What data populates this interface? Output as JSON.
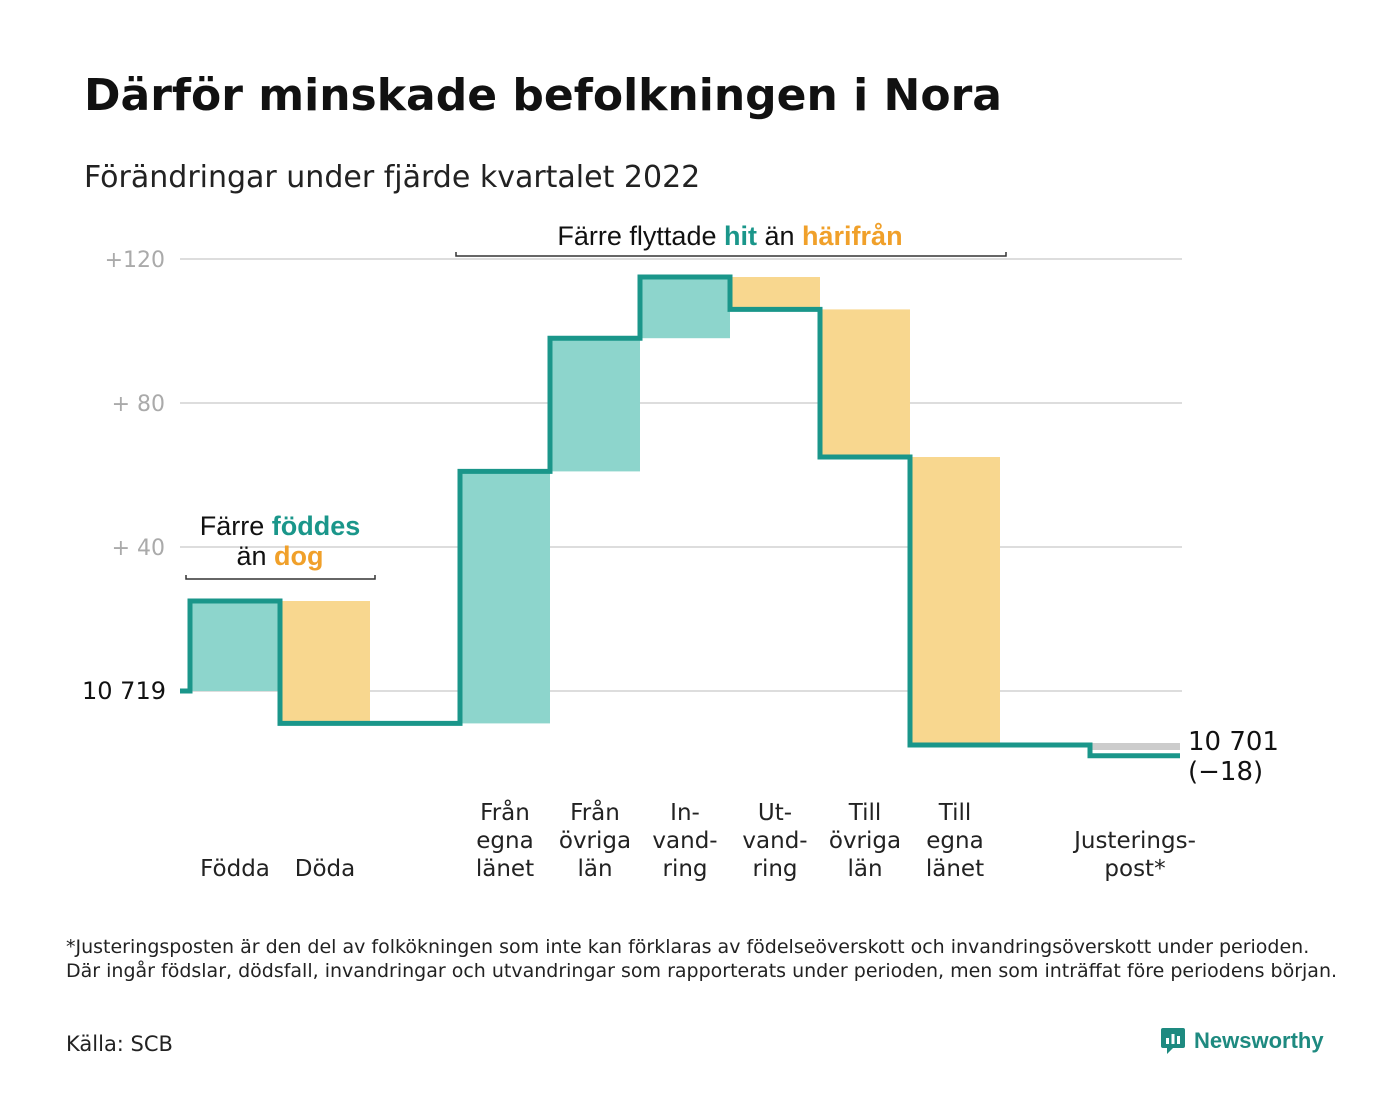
{
  "title": "Därför minskade befolkningen i Nora",
  "subtitle": "Förändringar under fjärde kvartalet 2022",
  "colors": {
    "increase_fill": "#8dd5cc",
    "decrease_fill": "#f8d78f",
    "adjust_fill": "#cccccc",
    "step_line": "#1a968a",
    "teal_text": "#1a968a",
    "orange_text": "#f0a02a",
    "grid": "#dddddd"
  },
  "chart_data": {
    "type": "waterfall",
    "y_ticks": [
      {
        "value": 40,
        "label": "+ 40"
      },
      {
        "value": 80,
        "label": "+ 80"
      },
      {
        "value": 120,
        "label": "+120"
      }
    ],
    "ylim": [
      -30,
      120
    ],
    "grid": true,
    "start_label": "10 719",
    "end_label_value": "10 701",
    "end_label_change": "(−18)",
    "categories": [
      {
        "lines": [
          "Födda"
        ],
        "kind": "increase",
        "from": 0,
        "to": 25
      },
      {
        "lines": [
          "Döda"
        ],
        "kind": "decrease",
        "from": 25,
        "to": -9
      },
      {
        "lines": [],
        "kind": "flat",
        "from": -9,
        "to": -9
      },
      {
        "lines": [
          "Från",
          "egna",
          "länet"
        ],
        "kind": "increase",
        "from": -9,
        "to": 61
      },
      {
        "lines": [
          "Från",
          "övriga",
          "län"
        ],
        "kind": "increase",
        "from": 61,
        "to": 98
      },
      {
        "lines": [
          "In-",
          "vand-",
          "ring"
        ],
        "kind": "increase",
        "from": 98,
        "to": 115
      },
      {
        "lines": [
          "Ut-",
          "vand-",
          "ring"
        ],
        "kind": "decrease",
        "from": 115,
        "to": 106
      },
      {
        "lines": [
          "Till",
          "övriga",
          "län"
        ],
        "kind": "decrease",
        "from": 106,
        "to": 65
      },
      {
        "lines": [
          "Till",
          "egna",
          "länet"
        ],
        "kind": "decrease",
        "from": 65,
        "to": -15
      },
      {
        "lines": [],
        "kind": "flat",
        "from": -15,
        "to": -15
      },
      {
        "lines": [
          "Justerings-",
          "post*"
        ],
        "kind": "adjust",
        "from": -15,
        "to": -18
      }
    ],
    "annotations": {
      "births": {
        "pre": "Färre ",
        "teal": "föddes",
        "line2_pre": "än ",
        "orange": "dog"
      },
      "moves": {
        "pre": "Färre flyttade ",
        "teal": "hit",
        "mid": " än ",
        "orange": "härifrån"
      }
    }
  },
  "footnote": "*Justeringsposten är den del av folkökningen som inte kan förklaras av födelseöverskott och invandringsöverskott under perioden. Där ingår födslar, dödsfall, invandringar och utvandringar som rapporterats under perioden, men som inträffat före periodens början.",
  "source": "Källa: SCB",
  "brand": {
    "name": "Newsworthy",
    "icon": "newsworthy-logo-icon"
  }
}
